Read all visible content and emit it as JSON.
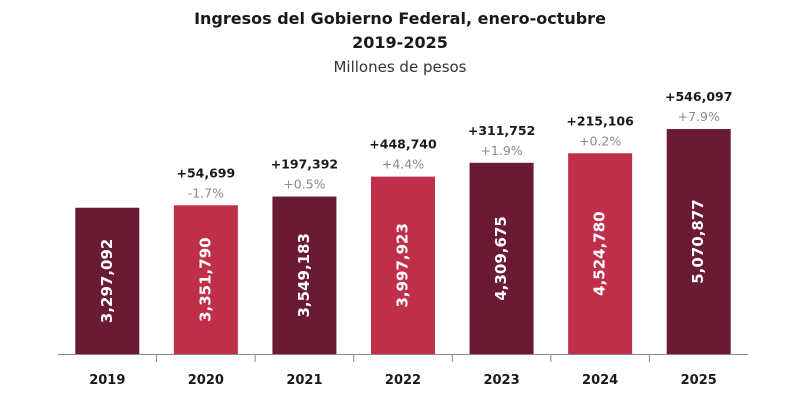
{
  "chart_data": {
    "type": "bar",
    "title": "Ingresos del Gobierno Federal, enero-octubre",
    "subtitle": "2019-2025",
    "unit_label": "Millones de pesos",
    "categories": [
      "2019",
      "2020",
      "2021",
      "2022",
      "2023",
      "2024",
      "2025"
    ],
    "values": [
      3297092,
      3351790,
      3549183,
      3997923,
      4309675,
      4524780,
      5070877
    ],
    "value_labels": [
      "3,297,092",
      "3,351,790",
      "3,549,183",
      "3,997,923",
      "4,309,675",
      "4,524,780",
      "5,070,877"
    ],
    "differences": [
      "",
      "+54,699",
      "+197,392",
      "+448,740",
      "+311,752",
      "+215,106",
      "+546,097"
    ],
    "growth": [
      "",
      "-1.7%",
      "+0.5%",
      "+4.4%",
      "+1.9%",
      "+0.2%",
      "+7.9%"
    ],
    "ylim": [
      0,
      5500000
    ],
    "grid": false,
    "legend": "none",
    "colors": [
      "#6b1a34",
      "#bf2f4a",
      "#6b1a34",
      "#bf2f4a",
      "#6b1a34",
      "#bf2f4a",
      "#6b1a34"
    ]
  }
}
